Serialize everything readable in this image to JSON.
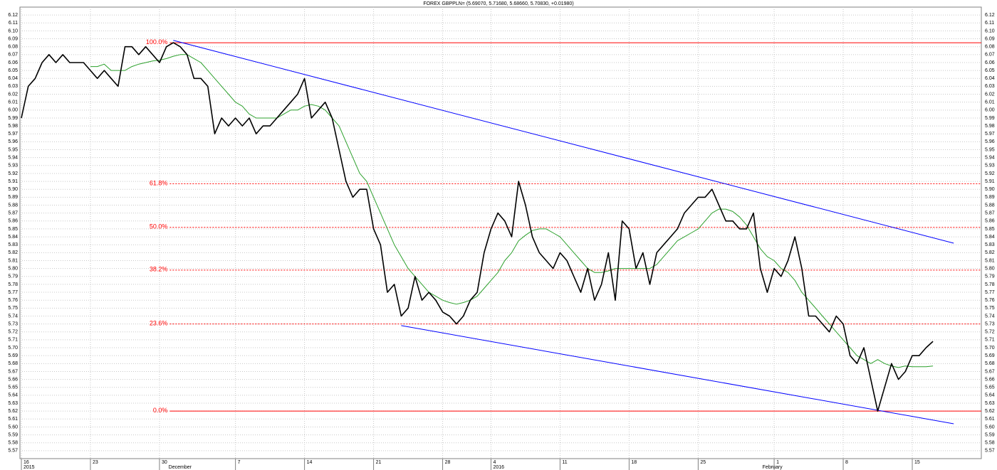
{
  "chart_data": {
    "type": "line",
    "title": "FOREX GBPPLN= (5.69070, 5.71680, 5.68660, 5.70830, +0.01980)",
    "categories": [
      "16",
      null,
      null,
      null,
      null,
      null,
      null,
      null,
      null,
      null,
      "23",
      null,
      null,
      null,
      null,
      null,
      null,
      null,
      null,
      null,
      "30",
      null,
      null,
      null,
      null,
      null,
      null,
      null,
      null,
      null,
      null,
      "7",
      null,
      null,
      null,
      null,
      null,
      null,
      null,
      null,
      null,
      "14",
      null,
      null,
      null,
      null,
      null,
      null,
      null,
      null,
      null,
      "21",
      null,
      null,
      null,
      null,
      null,
      null,
      null,
      null,
      null,
      "28",
      null,
      null,
      null,
      null,
      null,
      null,
      "4",
      null,
      null,
      null,
      null,
      null,
      null,
      null,
      null,
      null,
      "11",
      null,
      null,
      null,
      null,
      null,
      null,
      null,
      null,
      null,
      "18",
      null,
      null,
      null,
      null,
      null,
      null,
      null,
      null,
      null,
      "25",
      null,
      null,
      null,
      null,
      null,
      null,
      null,
      null,
      null,
      null,
      "1",
      null,
      null,
      null,
      null,
      null,
      null,
      null,
      null,
      null,
      "8",
      null,
      null,
      null,
      null,
      null,
      null,
      null,
      null,
      null,
      "15",
      null,
      null,
      null,
      null,
      null,
      null,
      null,
      null,
      null,
      null
    ],
    "x_sub_labels": [
      "2015",
      null,
      null,
      null,
      null,
      null,
      null,
      null,
      null,
      null,
      null,
      null,
      null,
      null,
      null,
      null,
      null,
      null,
      null,
      null,
      null,
      "December",
      null,
      null,
      null,
      null,
      null,
      null,
      null,
      null,
      null,
      null,
      null,
      null,
      null,
      null,
      null,
      null,
      null,
      null,
      null,
      null,
      null,
      null,
      null,
      null,
      null,
      null,
      null,
      null,
      null,
      null,
      null,
      null,
      null,
      null,
      null,
      null,
      null,
      null,
      null,
      null,
      null,
      null,
      null,
      null,
      null,
      null,
      "2016",
      null,
      null,
      null,
      null,
      null,
      null,
      null,
      null,
      null,
      null,
      null,
      null,
      null,
      null,
      null,
      null,
      null,
      null,
      null,
      null,
      null,
      null,
      null,
      null,
      null,
      null,
      null,
      null,
      null,
      null,
      null,
      null,
      null,
      null,
      null,
      null,
      null,
      null,
      "February",
      null,
      null,
      null,
      null,
      null,
      null,
      null,
      null,
      null,
      null,
      null,
      null,
      null,
      null,
      null,
      null,
      null,
      null,
      null,
      null,
      null,
      null,
      null,
      null,
      null,
      null,
      null,
      null,
      null,
      null
    ],
    "series": [
      {
        "color": "#000000",
        "values": [
          5.99,
          6.03,
          6.04,
          6.06,
          6.07,
          6.06,
          6.07,
          6.06,
          6.06,
          6.06,
          6.05,
          6.04,
          6.05,
          6.04,
          6.03,
          6.08,
          6.08,
          6.07,
          6.08,
          6.07,
          6.06,
          6.08,
          6.085,
          6.08,
          6.07,
          6.04,
          6.04,
          6.03,
          5.97,
          5.99,
          5.98,
          5.99,
          5.98,
          5.99,
          5.97,
          5.98,
          5.98,
          5.99,
          6.0,
          6.01,
          6.02,
          6.04,
          5.99,
          6.0,
          6.01,
          5.99,
          5.95,
          5.91,
          5.89,
          5.9,
          5.9,
          5.85,
          5.83,
          5.77,
          5.78,
          5.74,
          5.75,
          5.79,
          5.76,
          5.77,
          5.76,
          5.745,
          5.74,
          5.73,
          5.74,
          5.76,
          5.77,
          5.82,
          5.85,
          5.87,
          5.86,
          5.84,
          5.91,
          5.88,
          5.84,
          5.82,
          5.81,
          5.8,
          5.82,
          5.81,
          5.79,
          5.77,
          5.8,
          5.76,
          5.78,
          5.82,
          5.76,
          5.86,
          5.85,
          5.8,
          5.82,
          5.78,
          5.82,
          5.83,
          5.84,
          5.85,
          5.87,
          5.88,
          5.89,
          5.89,
          5.9,
          5.88,
          5.86,
          5.86,
          5.85,
          5.85,
          5.87,
          5.8,
          5.77,
          5.8,
          5.79,
          5.81,
          5.84,
          5.8,
          5.74,
          5.74,
          5.73,
          5.72,
          5.74,
          5.73,
          5.69,
          5.68,
          5.7,
          5.66,
          5.62,
          5.65,
          5.68,
          5.66,
          5.67,
          5.69,
          5.69,
          5.7,
          5.708,
          null,
          null,
          null,
          null,
          null,
          null,
          null
        ]
      },
      {
        "color": "#2ca02c",
        "values": [
          null,
          null,
          null,
          null,
          null,
          null,
          null,
          null,
          null,
          null,
          6.055,
          6.055,
          6.058,
          6.05,
          6.05,
          6.05,
          6.055,
          6.058,
          6.06,
          6.062,
          6.063,
          6.065,
          6.068,
          6.07,
          6.07,
          6.065,
          6.06,
          6.05,
          6.04,
          6.03,
          6.02,
          6.01,
          6.005,
          5.995,
          5.99,
          5.99,
          5.99,
          5.99,
          5.995,
          6.0,
          6.0,
          6.005,
          6.007,
          6.005,
          6.0,
          5.99,
          5.98,
          5.96,
          5.94,
          5.92,
          5.91,
          5.89,
          5.87,
          5.85,
          5.83,
          5.815,
          5.8,
          5.79,
          5.78,
          5.77,
          5.765,
          5.76,
          5.757,
          5.755,
          5.757,
          5.76,
          5.765,
          5.775,
          5.785,
          5.795,
          5.81,
          5.82,
          5.835,
          5.842,
          5.848,
          5.85,
          5.85,
          5.845,
          5.84,
          5.83,
          5.82,
          5.81,
          5.8,
          5.795,
          5.795,
          5.797,
          5.8,
          5.8,
          5.8,
          5.8,
          5.8,
          5.8,
          5.805,
          5.815,
          5.825,
          5.835,
          5.84,
          5.845,
          5.85,
          5.86,
          5.87,
          5.875,
          5.875,
          5.872,
          5.865,
          5.855,
          5.84,
          5.825,
          5.815,
          5.81,
          5.8,
          5.795,
          5.785,
          5.77,
          5.76,
          5.75,
          5.74,
          5.73,
          5.72,
          5.71,
          5.7,
          5.69,
          5.685,
          5.68,
          5.685,
          5.68,
          5.677,
          5.675,
          5.677,
          5.676,
          5.676,
          5.676,
          5.677,
          null,
          null,
          null,
          null,
          null,
          null,
          null
        ]
      }
    ],
    "fib_levels": [
      {
        "label": "100.0%",
        "value": 6.085,
        "style": "solid"
      },
      {
        "label": "61.8%",
        "value": 5.907,
        "style": "dashed"
      },
      {
        "label": "50.0%",
        "value": 5.852,
        "style": "dashed"
      },
      {
        "label": "38.2%",
        "value": 5.798,
        "style": "dashed"
      },
      {
        "label": "23.6%",
        "value": 5.73,
        "style": "dashed"
      },
      {
        "label": "0.0%",
        "value": 5.62,
        "style": "solid"
      }
    ],
    "fib_color": "#ff0000",
    "trendlines": [
      {
        "color": "#0000ff",
        "x": [
          22,
          135
        ],
        "y": [
          6.088,
          5.832
        ]
      },
      {
        "color": "#0000ff",
        "x": [
          55,
          135
        ],
        "y": [
          5.728,
          5.604
        ]
      }
    ],
    "ylim": [
      5.56,
      6.13
    ],
    "yticks": [
      5.57,
      5.58,
      5.59,
      {
        "value": 5.6,
        "label": "5.60"
      },
      5.61,
      5.62,
      5.63,
      5.64,
      5.65,
      5.66,
      5.67,
      5.68,
      5.69,
      {
        "value": 5.7,
        "label": "5.70"
      },
      5.71,
      5.72,
      5.73,
      5.74,
      5.75,
      5.76,
      5.77,
      5.78,
      5.79,
      {
        "value": 5.8,
        "label": "5.80"
      },
      5.81,
      5.82,
      5.83,
      5.84,
      5.85,
      5.86,
      5.87,
      5.88,
      5.89,
      {
        "value": 5.9,
        "label": "5.90"
      },
      5.91,
      5.92,
      5.93,
      5.94,
      5.95,
      5.96,
      5.97,
      5.98,
      5.99,
      {
        "value": 6.0,
        "label": "6.00"
      },
      6.01,
      6.02,
      6.03,
      6.04,
      6.05,
      6.06,
      6.07,
      6.08,
      6.09,
      {
        "value": 6.1,
        "label": "6.10"
      },
      6.11,
      6.12
    ],
    "grid": true
  }
}
